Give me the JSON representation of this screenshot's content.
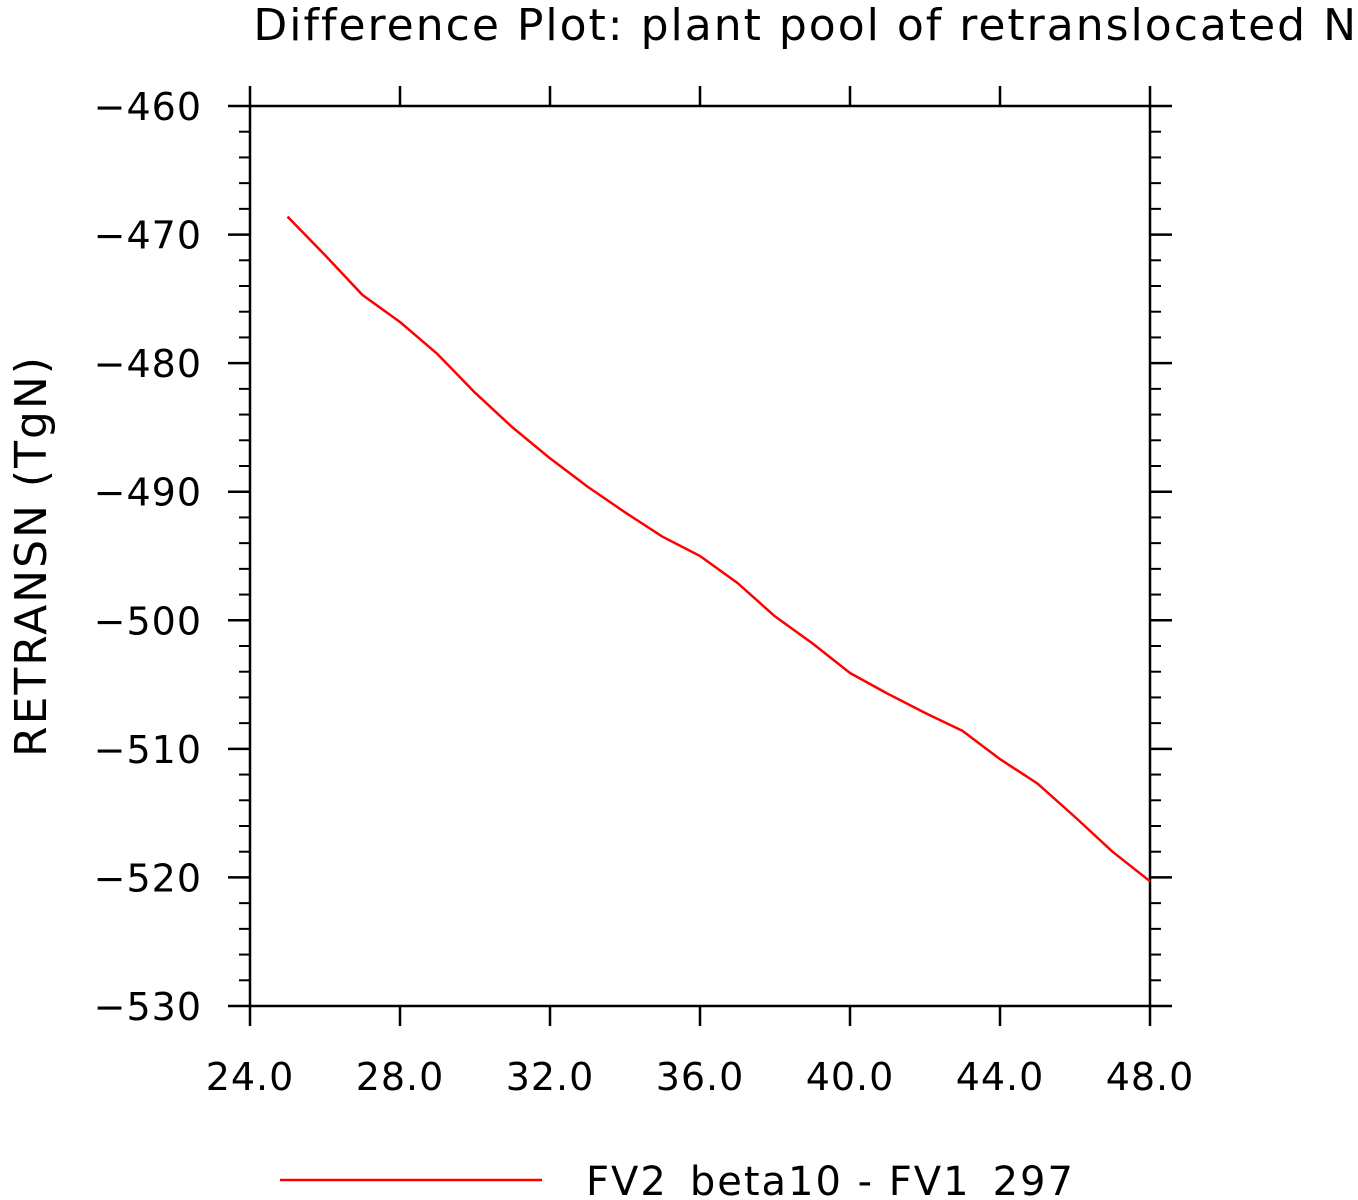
{
  "chart_data": {
    "type": "line",
    "title": "Difference Plot: plant pool of retranslocated N",
    "xlabel": "",
    "ylabel": "RETRANSN   (TgN)",
    "xlim": [
      24,
      48
    ],
    "ylim": [
      -530,
      -460
    ],
    "x_ticks": [
      "24.0",
      "28.0",
      "32.0",
      "36.0",
      "40.0",
      "44.0",
      "48.0"
    ],
    "y_ticks": [
      "-460",
      "-470",
      "-480",
      "-490",
      "-500",
      "-510",
      "-520",
      "-530"
    ],
    "grid": false,
    "legend_position": "bottom",
    "series": [
      {
        "name": "FV2_beta10 - FV1_297",
        "color": "#ff0000",
        "x": [
          25,
          26,
          27,
          28,
          29,
          30,
          31,
          32,
          33,
          34,
          35,
          36,
          37,
          38,
          39,
          40,
          41,
          42,
          43,
          44,
          45,
          46,
          47,
          48
        ],
        "y": [
          -468.6,
          -471.6,
          -474.7,
          -476.8,
          -479.3,
          -482.3,
          -485.0,
          -487.4,
          -489.6,
          -491.6,
          -493.5,
          -495.0,
          -497.1,
          -499.7,
          -501.8,
          -504.1,
          -505.7,
          -507.2,
          -508.6,
          -510.8,
          -512.7,
          -515.3,
          -518.0,
          -520.3
        ]
      }
    ]
  }
}
